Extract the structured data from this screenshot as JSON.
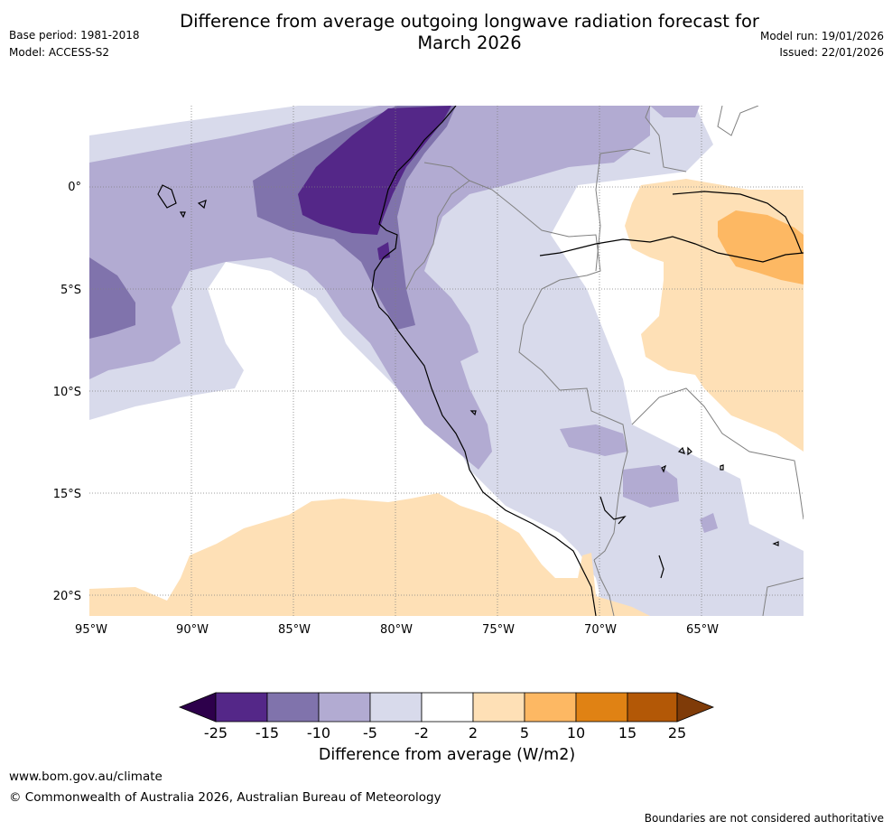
{
  "header": {
    "title_line1": "Difference from average outgoing longwave radiation forecast for",
    "title_line2": "March 2026",
    "base_period": "Base period: 1981-2018",
    "model": "Model: ACCESS-S2",
    "model_run": "Model run: 19/01/2026",
    "issued": "Issued: 22/01/2026"
  },
  "map": {
    "lon_labels": [
      "95°W",
      "90°W",
      "85°W",
      "80°W",
      "75°W",
      "70°W",
      "65°W"
    ],
    "lat_labels": [
      "0°",
      "5°S",
      "10°S",
      "15°S",
      "20°S"
    ],
    "extent": {
      "lon_min": -95,
      "lon_max": -60,
      "lat_min": -21,
      "lat_max": 4
    },
    "colors": {
      "p25": "#2d004b",
      "p15": "#542788",
      "p10": "#8073ac",
      "p5": "#b2abd2",
      "p2": "#d8daeb",
      "zero": "#ffffff",
      "o5": "#fee0b6",
      "o10": "#fdb863",
      "o15": "#e08214",
      "o25": "#b35806",
      "o30": "#7f3b08",
      "coast": "#000000",
      "border": "#808080",
      "grid": "#808080"
    }
  },
  "colorbar": {
    "ticks": [
      "-25",
      "-15",
      "-10",
      "-5",
      "-2",
      "2",
      "5",
      "10",
      "15",
      "25"
    ],
    "label": "Difference from average (W/m2)"
  },
  "footer": {
    "url": "www.bom.gov.au/climate",
    "copyright": "© Commonwealth of Australia 2026, Australian Bureau of Meteorology",
    "disclaimer": "Boundaries are not considered authoritative"
  }
}
